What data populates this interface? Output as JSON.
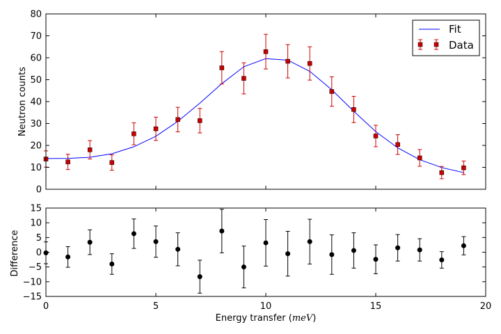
{
  "chart_data": [
    {
      "type": "line",
      "panel": "top",
      "ylabel": "Neutron counts",
      "xlabel": "",
      "xlim": [
        0,
        20
      ],
      "ylim": [
        0,
        80
      ],
      "yticks": [
        0,
        10,
        20,
        30,
        40,
        50,
        60,
        70,
        80
      ],
      "legend": {
        "position": "top-right",
        "entries": [
          "Fit",
          "Data"
        ]
      },
      "series": [
        {
          "name": "Fit",
          "kind": "line",
          "color": "#0000ff",
          "x": [
            0,
            1,
            2,
            3,
            4,
            5,
            6,
            7,
            8,
            9,
            10,
            11,
            12,
            13,
            14,
            15,
            16,
            17,
            18,
            19
          ],
          "y": [
            14.0,
            14.1,
            14.6,
            16.2,
            19.4,
            24.2,
            31.0,
            39.3,
            48.2,
            55.9,
            59.6,
            58.9,
            53.8,
            45.4,
            35.6,
            26.3,
            18.9,
            13.5,
            9.9,
            7.6
          ]
        },
        {
          "name": "Data",
          "kind": "errorbar",
          "color": "#cc0000",
          "marker": "square",
          "x": [
            0,
            1,
            2,
            3,
            4,
            5,
            6,
            7,
            8,
            9,
            10,
            11,
            12,
            13,
            14,
            15,
            16,
            17,
            18,
            19
          ],
          "y": [
            13.8,
            12.5,
            18.0,
            12.2,
            25.3,
            27.6,
            31.8,
            31.3,
            55.4,
            50.6,
            62.8,
            58.4,
            57.4,
            44.6,
            36.4,
            24.3,
            20.4,
            14.3,
            7.6,
            9.8
          ],
          "yerr": [
            3.7,
            3.5,
            4.2,
            3.5,
            5.0,
            5.3,
            5.6,
            5.6,
            7.4,
            7.1,
            7.9,
            7.6,
            7.6,
            6.7,
            6.0,
            4.9,
            4.5,
            3.8,
            2.8,
            3.1
          ]
        }
      ]
    },
    {
      "type": "scatter",
      "panel": "bottom",
      "ylabel": "Difference",
      "xlabel": "Energy transfer (meV)",
      "xlim": [
        0,
        20
      ],
      "ylim": [
        -15,
        15
      ],
      "xticks": [
        0,
        5,
        10,
        15,
        20
      ],
      "yticks": [
        -15,
        -10,
        -5,
        0,
        5,
        10,
        15
      ],
      "series": [
        {
          "name": "Difference",
          "kind": "errorbar",
          "color": "#000000",
          "marker": "circle",
          "x": [
            0,
            1,
            2,
            3,
            4,
            5,
            6,
            7,
            8,
            9,
            10,
            11,
            12,
            13,
            14,
            15,
            16,
            17,
            18,
            19
          ],
          "y": [
            -0.2,
            -1.6,
            3.4,
            -4.0,
            6.3,
            3.6,
            1.0,
            -8.3,
            7.2,
            -5.0,
            3.2,
            -0.5,
            3.6,
            -0.8,
            0.6,
            -2.4,
            1.5,
            0.8,
            -2.6,
            2.2
          ],
          "yerr": [
            3.7,
            3.5,
            4.2,
            3.5,
            5.0,
            5.3,
            5.6,
            5.6,
            7.4,
            7.1,
            7.9,
            7.6,
            7.6,
            6.7,
            6.0,
            4.9,
            4.5,
            3.8,
            2.8,
            3.1
          ]
        }
      ]
    }
  ],
  "xlabel_parts": {
    "prefix": "Energy transfer (",
    "unit": "meV",
    "suffix": ")"
  }
}
